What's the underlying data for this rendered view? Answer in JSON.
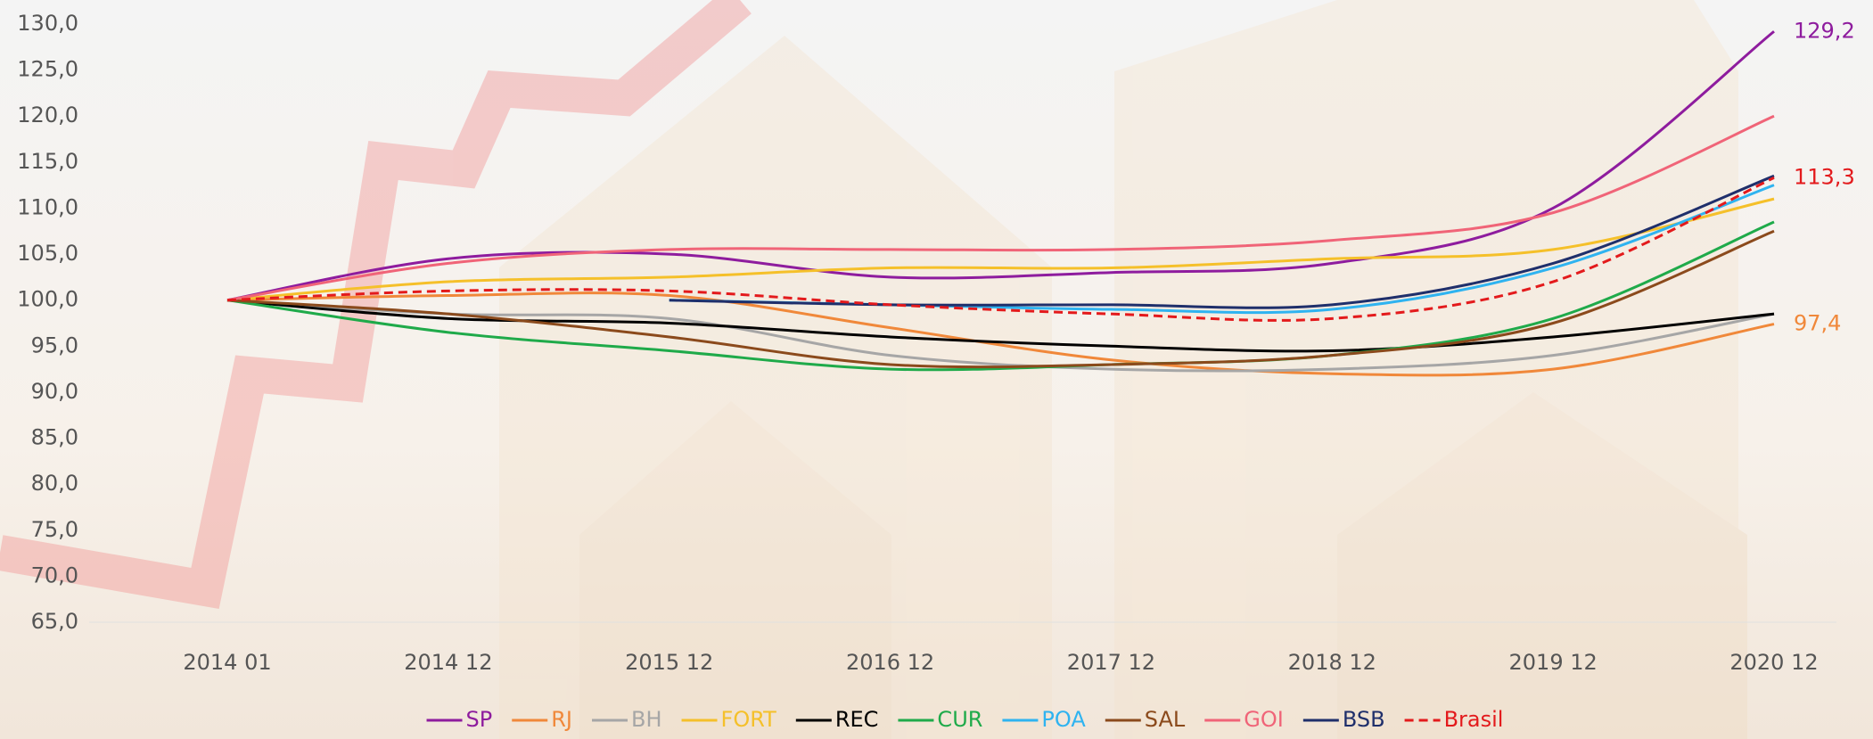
{
  "chart_data": {
    "type": "line",
    "categories": [
      "2014 01",
      "2014 12",
      "2015 12",
      "2016 12",
      "2017 12",
      "2018 12",
      "2019 12",
      "2020 12"
    ],
    "ylim": [
      65,
      130
    ],
    "yticks": [
      {
        "value": 65,
        "label": "65,0"
      },
      {
        "value": 70,
        "label": "70,0"
      },
      {
        "value": 75,
        "label": "75,0"
      },
      {
        "value": 80,
        "label": "80,0"
      },
      {
        "value": 85,
        "label": "85,0"
      },
      {
        "value": 90,
        "label": "90,0"
      },
      {
        "value": 95,
        "label": "95,0"
      },
      {
        "value": 100,
        "label": "100,0"
      },
      {
        "value": 105,
        "label": "105,0"
      },
      {
        "value": 110,
        "label": "110,0"
      },
      {
        "value": 115,
        "label": "115,0"
      },
      {
        "value": 120,
        "label": "120,0"
      },
      {
        "value": 125,
        "label": "125,0"
      },
      {
        "value": 130,
        "label": "130,0"
      }
    ],
    "legend": "bottom",
    "series": [
      {
        "name": "SP",
        "color": "#8e1c9e",
        "values": [
          100,
          104.5,
          105,
          102.5,
          103,
          104,
          110,
          129.2
        ],
        "value_labels": [
          null,
          null,
          null,
          null,
          null,
          null,
          null,
          "129,2"
        ]
      },
      {
        "name": "RJ",
        "color": "#f0883a",
        "values": [
          100,
          100.5,
          100.5,
          97,
          93.5,
          92,
          92.5,
          97.4
        ],
        "value_labels": [
          null,
          null,
          null,
          null,
          null,
          null,
          null,
          "97,4"
        ]
      },
      {
        "name": "BH",
        "color": "#a6a6a6",
        "values": [
          100,
          98.5,
          98,
          94,
          92.5,
          92.5,
          94,
          98.5
        ]
      },
      {
        "name": "FORT",
        "color": "#f5c02a",
        "values": [
          100,
          102,
          102.5,
          103.5,
          103.5,
          104.5,
          105.5,
          111
        ]
      },
      {
        "name": "REC",
        "color": "#000000",
        "values": [
          100,
          98,
          97.5,
          96,
          95,
          94.5,
          96,
          98.5
        ]
      },
      {
        "name": "CUR",
        "color": "#1faa4a",
        "values": [
          100,
          96.5,
          94.5,
          92.5,
          93,
          94,
          98,
          108.5
        ]
      },
      {
        "name": "POA",
        "color": "#2fb3f0",
        "values": [
          null,
          null,
          100,
          99.5,
          99,
          99,
          103.5,
          112.5
        ]
      },
      {
        "name": "SAL",
        "color": "#8b4a1c",
        "values": [
          100,
          98.5,
          96,
          93,
          93,
          94,
          97.5,
          107.5
        ]
      },
      {
        "name": "GOI",
        "color": "#f06478",
        "values": [
          100,
          104,
          105.5,
          105.5,
          105.5,
          106.5,
          109.5,
          120
        ]
      },
      {
        "name": "BSB",
        "color": "#1f2f6b",
        "values": [
          null,
          null,
          100,
          99.5,
          99.5,
          99.5,
          104,
          113.5
        ]
      },
      {
        "name": "Brasil",
        "color": "#e31a1c",
        "dash": "dashed",
        "values": [
          100,
          101,
          101,
          99.5,
          98.5,
          98,
          102,
          113.3
        ],
        "value_labels": [
          null,
          null,
          null,
          null,
          null,
          null,
          null,
          "113,3"
        ]
      }
    ]
  }
}
